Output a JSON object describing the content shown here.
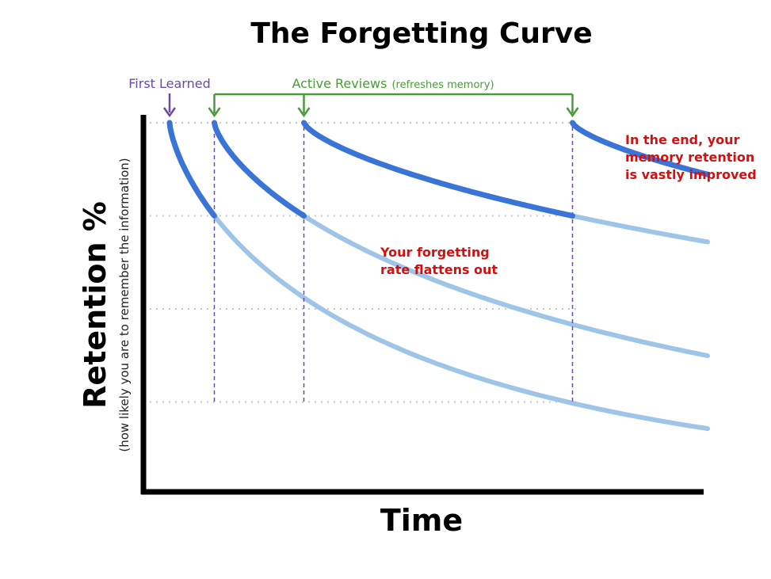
{
  "chart_data": {
    "type": "line",
    "title": "The Forgetting Curve",
    "xlabel": "Time",
    "ylabel": "Retention %",
    "ylabel_sub": "(how likely you are to remember the information)",
    "annotations": {
      "first_learned": "First Learned",
      "active_reviews": "Active Reviews",
      "active_reviews_note": "(refreshes memory)",
      "flattens": [
        "Your forgetting",
        "rate flattens out"
      ],
      "improved": [
        "In the end, your",
        "memory retention",
        "is vastly improved"
      ]
    },
    "colors": {
      "curve": "#3a74d6",
      "faded": "#9ec5e8",
      "purple": "#6a4aa8",
      "green": "#4b9a3a",
      "red": "#d11111",
      "grid": "#c8c8c8"
    },
    "grid": true,
    "review_start_times": [
      0,
      1,
      3,
      9
    ],
    "review_threshold": 25
  }
}
